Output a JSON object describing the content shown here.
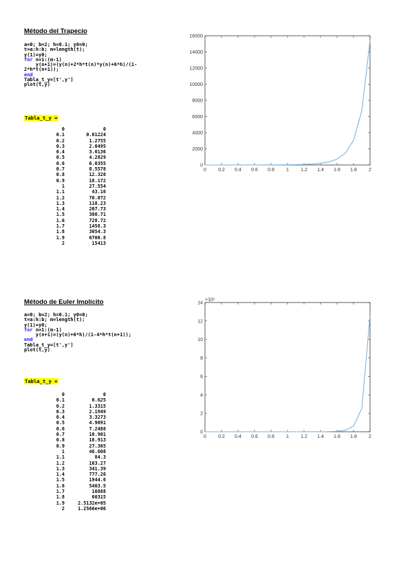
{
  "trap": {
    "title": "Método del Trapecio",
    "code": [
      "a=0; b=2; h=0.1; y0=0;",
      "t=a:h:b; m=length(t);",
      "y(1)=y0;",
      "for n=1:(m-1)",
      "    y(n+1)=(y(n)+2*h*t(n)*y(n)+6*h)/(1-",
      "2*h*t(n+1));",
      "end",
      "Tabla_t_y=[t',y']",
      "plot(t,y)"
    ],
    "ans_label": "Tabla_t_y =",
    "table": [
      [
        "0",
        "0"
      ],
      [
        "0.1",
        "0.61224"
      ],
      [
        "0.2",
        "1.2755"
      ],
      [
        "0.3",
        "2.0495"
      ],
      [
        "0.4",
        "3.0136"
      ],
      [
        "0.5",
        "4.2829"
      ],
      [
        "0.6",
        "6.0355"
      ],
      [
        "0.7",
        "8.5578"
      ],
      [
        "0.8",
        "12.328"
      ],
      [
        "0.9",
        "18.172"
      ],
      [
        "1",
        "27.554"
      ],
      [
        "1.1",
        "43.16"
      ],
      [
        "1.2",
        "70.072"
      ],
      [
        "1.3",
        "118.23"
      ],
      [
        "1.4",
        "207.73"
      ],
      [
        "1.5",
        "380.71"
      ],
      [
        "1.6",
        "728.72"
      ],
      [
        "1.7",
        "1458.3"
      ],
      [
        "1.8",
        "3054.3"
      ],
      [
        "1.9",
        "6700.8"
      ],
      [
        "2",
        "15413"
      ]
    ]
  },
  "euler": {
    "title": "Método de Euler Implícito",
    "code": [
      "a=0; b=2; h=0.1; y0=0;",
      "t=a:h:b; m=length(t);",
      "y(1)=y0;",
      "for n=1:(m-1)",
      "    y(n+1)=(y(n)+6*h)/(1-4*h*t(n+1));",
      "end",
      "Tabla_t_y=[t',y']",
      "plot(t,y)"
    ],
    "ans_label": "Tabla_t_y =",
    "table": [
      [
        "0",
        "0"
      ],
      [
        "0.1",
        "0.625"
      ],
      [
        "0.2",
        "1.3315"
      ],
      [
        "0.3",
        "2.1949"
      ],
      [
        "0.4",
        "3.3273"
      ],
      [
        "0.5",
        "4.9091"
      ],
      [
        "0.6",
        "7.2488"
      ],
      [
        "0.7",
        "10.901"
      ],
      [
        "0.8",
        "16.913"
      ],
      [
        "0.9",
        "27.365"
      ],
      [
        "1",
        "46.608"
      ],
      [
        "1.1",
        "84.3"
      ],
      [
        "1.2",
        "163.27"
      ],
      [
        "1.3",
        "341.39"
      ],
      [
        "1.4",
        "777.26"
      ],
      [
        "1.5",
        "1944.6"
      ],
      [
        "1.6",
        "5403.5"
      ],
      [
        "1.7",
        "16888"
      ],
      [
        "1.8",
        "60315"
      ],
      [
        "1.9",
        "2.5132e+05"
      ],
      [
        "2",
        "1.2566e+06"
      ]
    ]
  },
  "chart_data": [
    {
      "type": "line",
      "title": "",
      "xlabel": "",
      "ylabel": "",
      "xlim": [
        0,
        2
      ],
      "ylim": [
        0,
        16000
      ],
      "xticks": [
        "0",
        "0.2",
        "0.4",
        "0.6",
        "0.8",
        "1",
        "1.2",
        "1.4",
        "1.6",
        "1.8",
        "2"
      ],
      "yticks": [
        "0",
        "2000",
        "4000",
        "6000",
        "8000",
        "10000",
        "12000",
        "14000",
        "16000"
      ],
      "grid": false,
      "line_color": "#7ab3d9",
      "x": [
        0,
        0.1,
        0.2,
        0.3,
        0.4,
        0.5,
        0.6,
        0.7,
        0.8,
        0.9,
        1,
        1.1,
        1.2,
        1.3,
        1.4,
        1.5,
        1.6,
        1.7,
        1.8,
        1.9,
        2
      ],
      "y": [
        0,
        0.61224,
        1.2755,
        2.0495,
        3.0136,
        4.2829,
        6.0355,
        8.5578,
        12.328,
        18.172,
        27.554,
        43.16,
        70.072,
        118.23,
        207.73,
        380.71,
        728.72,
        1458.3,
        3054.3,
        6700.8,
        15413
      ]
    },
    {
      "type": "line",
      "title": "",
      "xlabel": "",
      "ylabel": "",
      "xlim": [
        0,
        2
      ],
      "ylim": [
        0,
        1400000
      ],
      "y_exponent_label": "×10⁵",
      "xticks": [
        "0",
        "0.2",
        "0.4",
        "0.6",
        "0.8",
        "1",
        "1.2",
        "1.4",
        "1.6",
        "1.8",
        "2"
      ],
      "yticks": [
        "0",
        "2",
        "4",
        "6",
        "8",
        "10",
        "12",
        "14"
      ],
      "grid": false,
      "line_color": "#7ab3d9",
      "x": [
        0,
        0.1,
        0.2,
        0.3,
        0.4,
        0.5,
        0.6,
        0.7,
        0.8,
        0.9,
        1,
        1.1,
        1.2,
        1.3,
        1.4,
        1.5,
        1.6,
        1.7,
        1.8,
        1.9,
        2
      ],
      "y": [
        0,
        0.625,
        1.3315,
        2.1949,
        3.3273,
        4.9091,
        7.2488,
        10.901,
        16.913,
        27.365,
        46.608,
        84.3,
        163.27,
        341.39,
        777.26,
        1944.6,
        5403.5,
        16888,
        60315,
        251320,
        1256600
      ]
    }
  ]
}
